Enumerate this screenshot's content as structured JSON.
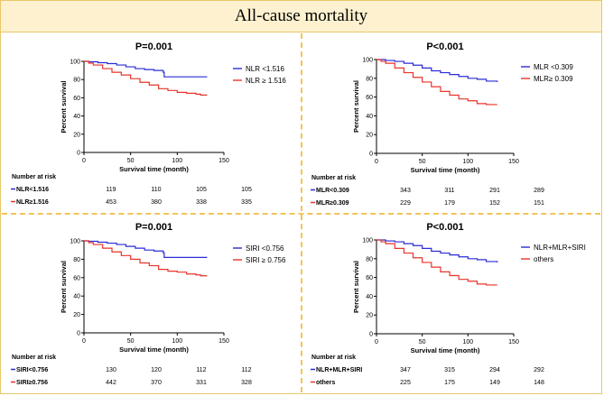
{
  "banner_title": "All-cause mortality",
  "colors": {
    "blue": "#2b2bd6",
    "red": "#e8342a",
    "banner_bg": "#fdf1cf",
    "divider": "#f2c45a"
  },
  "chart_data": [
    {
      "type": "line",
      "title": "P=0.001",
      "xlabel": "Survival time (month)",
      "ylabel": "Percent survival",
      "xlim": [
        0,
        150
      ],
      "ylim": [
        0,
        100
      ],
      "xticks": [
        "0",
        "50",
        "100",
        "150"
      ],
      "yticks": [
        "0",
        "20",
        "40",
        "60",
        "80",
        "100"
      ],
      "legend_position": "top-right",
      "series": [
        {
          "name": "NLR <1.516",
          "color": "#2b2bd6",
          "x": [
            0,
            5,
            15,
            25,
            35,
            45,
            55,
            65,
            75,
            85,
            86,
            95,
            105,
            115,
            125,
            132
          ],
          "y": [
            100,
            99.5,
            98.5,
            97.5,
            96,
            94,
            92,
            91,
            90,
            88,
            83,
            83,
            83,
            83,
            83,
            83
          ]
        },
        {
          "name": "NLR ≥ 1.516",
          "color": "#e8342a",
          "x": [
            0,
            5,
            10,
            20,
            30,
            40,
            50,
            60,
            70,
            80,
            90,
            100,
            110,
            120,
            125,
            132
          ],
          "y": [
            100,
            98,
            96,
            92,
            88,
            85,
            81,
            77,
            74,
            70,
            68,
            66,
            65,
            64,
            63,
            63
          ]
        }
      ],
      "risk_table": {
        "header": "Number at risk",
        "rows": [
          {
            "label": "NLR<1.516",
            "color": "#2b2bd6",
            "values": [
              "119",
              "110",
              "105",
              "105"
            ]
          },
          {
            "label": "NLR≥1.516",
            "color": "#e8342a",
            "values": [
              "453",
              "380",
              "338",
              "335"
            ]
          }
        ]
      }
    },
    {
      "type": "line",
      "title": "P<0.001",
      "xlabel": "Survival time (month)",
      "ylabel": "Percent survival",
      "xlim": [
        0,
        150
      ],
      "ylim": [
        0,
        100
      ],
      "xticks": [
        "0",
        "50",
        "100",
        "150"
      ],
      "yticks": [
        "0",
        "20",
        "40",
        "60",
        "80",
        "100"
      ],
      "legend_position": "top-right",
      "series": [
        {
          "name": "MLR <0.309",
          "color": "#2b2bd6",
          "x": [
            0,
            10,
            20,
            30,
            40,
            50,
            60,
            70,
            80,
            90,
            100,
            110,
            120,
            132
          ],
          "y": [
            100,
            99,
            98,
            96,
            94,
            91,
            88,
            86,
            84,
            82,
            80,
            79,
            77,
            76
          ]
        },
        {
          "name": "MLR≥ 0.309",
          "color": "#e8342a",
          "x": [
            0,
            5,
            10,
            20,
            30,
            40,
            50,
            60,
            70,
            80,
            90,
            100,
            110,
            120,
            132
          ],
          "y": [
            100,
            98,
            96,
            91,
            86,
            81,
            76,
            71,
            66,
            62,
            58,
            56,
            53,
            52,
            52
          ]
        }
      ],
      "risk_table": {
        "header": "Number at risk",
        "rows": [
          {
            "label": "MLR<0.309",
            "color": "#2b2bd6",
            "values": [
              "343",
              "311",
              "291",
              "289"
            ]
          },
          {
            "label": "MLR≥0.309",
            "color": "#e8342a",
            "values": [
              "229",
              "179",
              "152",
              "151"
            ]
          }
        ]
      }
    },
    {
      "type": "line",
      "title": "P=0.001",
      "xlabel": "Survival time (month)",
      "ylabel": "Percent survival",
      "xlim": [
        0,
        150
      ],
      "ylim": [
        0,
        100
      ],
      "xticks": [
        "0",
        "50",
        "100",
        "150"
      ],
      "yticks": [
        "0",
        "20",
        "40",
        "60",
        "80",
        "100"
      ],
      "legend_position": "top-right",
      "series": [
        {
          "name": "SIRI <0.756",
          "color": "#2b2bd6",
          "x": [
            0,
            5,
            15,
            25,
            35,
            45,
            55,
            65,
            75,
            85,
            86,
            95,
            105,
            115,
            125,
            132
          ],
          "y": [
            100,
            99.5,
            98.5,
            97.5,
            96,
            94,
            92,
            90,
            89,
            87,
            82,
            82,
            82,
            82,
            82,
            82
          ]
        },
        {
          "name": "SIRI ≥ 0.756",
          "color": "#e8342a",
          "x": [
            0,
            5,
            10,
            20,
            30,
            40,
            50,
            60,
            70,
            80,
            90,
            100,
            110,
            120,
            125,
            132
          ],
          "y": [
            100,
            98,
            96,
            92,
            88,
            84,
            80,
            76,
            73,
            69,
            67,
            66,
            64,
            63,
            62,
            62
          ]
        }
      ],
      "risk_table": {
        "header": "Number at risk",
        "rows": [
          {
            "label": "SIRI<0.756",
            "color": "#2b2bd6",
            "values": [
              "130",
              "120",
              "112",
              "112"
            ]
          },
          {
            "label": "SIRI≥0.756",
            "color": "#e8342a",
            "values": [
              "442",
              "370",
              "331",
              "328"
            ]
          }
        ]
      }
    },
    {
      "type": "line",
      "title": "P<0.001",
      "xlabel": "Survival time (month)",
      "ylabel": "Percent survival",
      "xlim": [
        0,
        150
      ],
      "ylim": [
        0,
        100
      ],
      "xticks": [
        "0",
        "50",
        "100",
        "150"
      ],
      "yticks": [
        "0",
        "20",
        "40",
        "60",
        "80",
        "100"
      ],
      "legend_position": "top-right",
      "series": [
        {
          "name": "NLR+MLR+SIRI",
          "color": "#2b2bd6",
          "x": [
            0,
            10,
            20,
            30,
            40,
            50,
            60,
            70,
            80,
            90,
            100,
            110,
            120,
            132
          ],
          "y": [
            100,
            99,
            98,
            96,
            94,
            91,
            88,
            86,
            84,
            82,
            80,
            79,
            77,
            76
          ]
        },
        {
          "name": "others",
          "color": "#e8342a",
          "x": [
            0,
            5,
            10,
            20,
            30,
            40,
            50,
            60,
            70,
            80,
            90,
            100,
            110,
            120,
            132
          ],
          "y": [
            100,
            98,
            96,
            91,
            86,
            81,
            76,
            71,
            66,
            62,
            58,
            56,
            53,
            52,
            52
          ]
        }
      ],
      "risk_table": {
        "header": "Number at risk",
        "rows": [
          {
            "label": "NLR+MLR+SIRI",
            "color": "#2b2bd6",
            "values": [
              "347",
              "315",
              "294",
              "292"
            ]
          },
          {
            "label": "others",
            "color": "#e8342a",
            "values": [
              "225",
              "175",
              "149",
              "148"
            ]
          }
        ]
      }
    }
  ]
}
